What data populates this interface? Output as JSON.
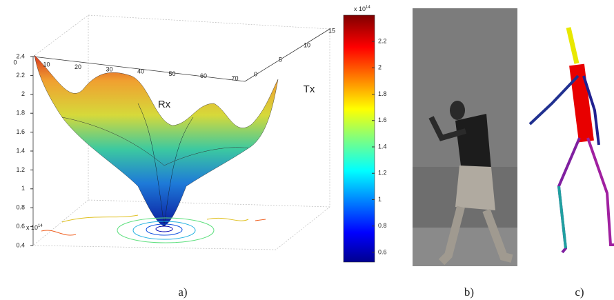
{
  "figure": {
    "panel_a": {
      "caption": "a)",
      "surface_plot": {
        "x_label": "Rx",
        "y_label": "Tx",
        "x_ticks": [
          0,
          10,
          20,
          30,
          40,
          50,
          60,
          70
        ],
        "y_ticks": [
          0,
          5,
          10,
          15
        ],
        "z_ticks": [
          0.4,
          0.6,
          0.8,
          1,
          1.2,
          1.4,
          1.6,
          1.8,
          2,
          2.2,
          2.4
        ],
        "z_multiplier": "x 10",
        "z_multiplier_power": "14"
      },
      "colorbar": {
        "ticks": [
          0.6,
          0.8,
          1,
          1.2,
          1.4,
          1.6,
          1.8,
          2,
          2.2
        ],
        "multiplier": "x 10",
        "multiplier_power": "14"
      }
    },
    "panel_b": {
      "caption": "b)"
    },
    "panel_c": {
      "caption": "c)"
    }
  }
}
